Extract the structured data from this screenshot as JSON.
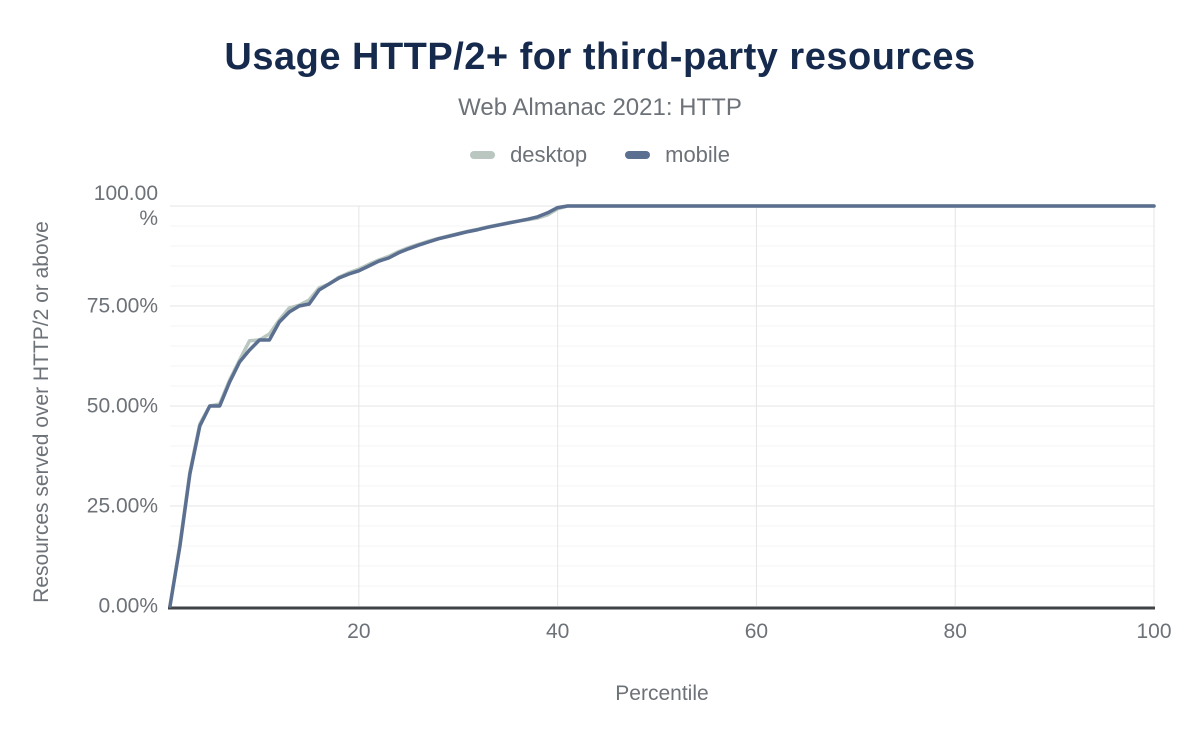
{
  "chart": {
    "title": "Usage HTTP/2+ for third-party resources",
    "subtitle": "Web Almanac 2021: HTTP"
  },
  "chart_data": {
    "type": "line",
    "title": "Usage HTTP/2+ for third-party resources",
    "subtitle": "Web Almanac 2021: HTTP",
    "xlabel": "Percentile",
    "ylabel": "Resources served over HTTP/2 or above",
    "xlim": [
      1,
      100
    ],
    "ylim": [
      0,
      100
    ],
    "legend_position": "top",
    "grid": {
      "y_minor_step": 5,
      "y_major": [
        25,
        50,
        75,
        100
      ]
    },
    "xticks": [
      {
        "v": 20,
        "label": "20"
      },
      {
        "v": 40,
        "label": "40"
      },
      {
        "v": 60,
        "label": "60"
      },
      {
        "v": 80,
        "label": "80"
      },
      {
        "v": 100,
        "label": "100"
      }
    ],
    "yticks": [
      {
        "v": 100,
        "label": "100.00\n%"
      },
      {
        "v": 75,
        "label": "75.00%"
      },
      {
        "v": 50,
        "label": "50.00%"
      },
      {
        "v": 25,
        "label": "25.00%"
      },
      {
        "v": 0,
        "label": "0.00%"
      }
    ],
    "series": [
      {
        "name": "desktop",
        "color": "#b9c7c0",
        "points": [
          [
            1,
            0
          ],
          [
            2,
            15.5
          ],
          [
            3,
            33.5
          ],
          [
            4,
            45.5
          ],
          [
            5,
            50
          ],
          [
            6,
            50.5
          ],
          [
            7,
            56.5
          ],
          [
            8,
            61.5
          ],
          [
            9,
            66.3
          ],
          [
            10,
            66.5
          ],
          [
            11,
            68
          ],
          [
            12,
            71.5
          ],
          [
            13,
            74.5
          ],
          [
            14,
            75.2
          ],
          [
            15,
            76.5
          ],
          [
            16,
            79.5
          ],
          [
            17,
            80.5
          ],
          [
            18,
            82.2
          ],
          [
            19,
            83.3
          ],
          [
            20,
            84.2
          ],
          [
            21,
            85.4
          ],
          [
            22,
            86.5
          ],
          [
            23,
            87.4
          ],
          [
            24,
            88.6
          ],
          [
            25,
            89.6
          ],
          [
            26,
            90.4
          ],
          [
            27,
            91.2
          ],
          [
            28,
            91.9
          ],
          [
            29,
            92.5
          ],
          [
            30,
            93.1
          ],
          [
            31,
            93.7
          ],
          [
            32,
            94.2
          ],
          [
            33,
            94.8
          ],
          [
            34,
            95.3
          ],
          [
            35,
            95.8
          ],
          [
            36,
            96.2
          ],
          [
            37,
            96.6
          ],
          [
            38,
            97.0
          ],
          [
            39,
            97.8
          ],
          [
            40,
            99.3
          ],
          [
            41,
            100
          ],
          [
            50,
            100
          ],
          [
            60,
            100
          ],
          [
            70,
            100
          ],
          [
            80,
            100
          ],
          [
            90,
            100
          ],
          [
            100,
            100
          ]
        ]
      },
      {
        "name": "mobile",
        "color": "#5b6f90",
        "points": [
          [
            1,
            0
          ],
          [
            2,
            15
          ],
          [
            3,
            33
          ],
          [
            4,
            45
          ],
          [
            5,
            50
          ],
          [
            6,
            50
          ],
          [
            7,
            56
          ],
          [
            8,
            61
          ],
          [
            9,
            64
          ],
          [
            10,
            66.5
          ],
          [
            11,
            66.5
          ],
          [
            12,
            71
          ],
          [
            13,
            73.5
          ],
          [
            14,
            75
          ],
          [
            15,
            75.5
          ],
          [
            16,
            79
          ],
          [
            17,
            80.5
          ],
          [
            18,
            82
          ],
          [
            19,
            83
          ],
          [
            20,
            83.8
          ],
          [
            21,
            85
          ],
          [
            22,
            86.2
          ],
          [
            23,
            87
          ],
          [
            24,
            88.3
          ],
          [
            25,
            89.3
          ],
          [
            26,
            90.2
          ],
          [
            27,
            91
          ],
          [
            28,
            91.8
          ],
          [
            29,
            92.4
          ],
          [
            30,
            93
          ],
          [
            31,
            93.6
          ],
          [
            32,
            94.1
          ],
          [
            33,
            94.7
          ],
          [
            34,
            95.2
          ],
          [
            35,
            95.7
          ],
          [
            36,
            96.2
          ],
          [
            37,
            96.7
          ],
          [
            38,
            97.3
          ],
          [
            39,
            98.3
          ],
          [
            40,
            99.6
          ],
          [
            41,
            100
          ],
          [
            50,
            100
          ],
          [
            60,
            100
          ],
          [
            70,
            100
          ],
          [
            80,
            100
          ],
          [
            90,
            100
          ],
          [
            100,
            100
          ]
        ]
      }
    ],
    "colors": {
      "title": "#152a4d",
      "text_muted": "#6d7278",
      "grid_minor": "#f4f4f4",
      "grid_major": "#e4e4e4",
      "axis_line": "#3f4246",
      "background": "#ffffff"
    }
  }
}
